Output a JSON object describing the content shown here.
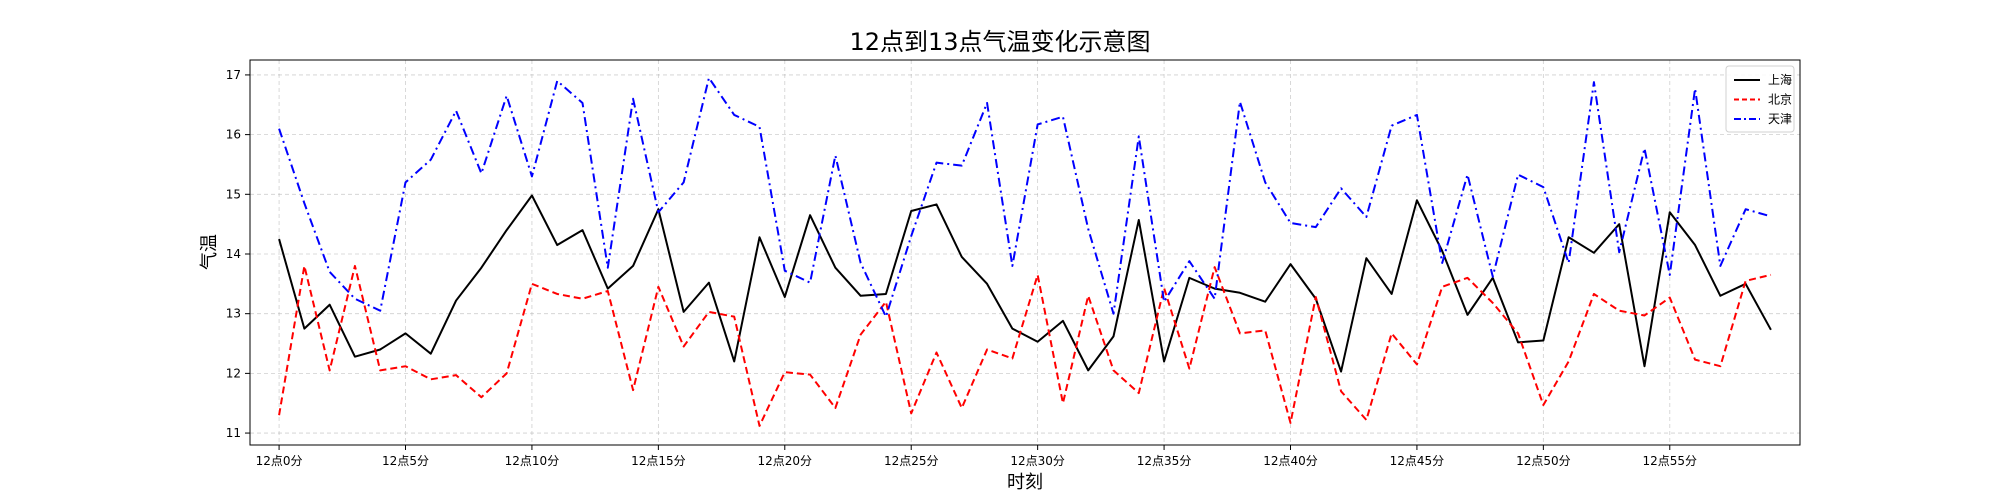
{
  "chart_data": {
    "type": "line",
    "title": "12点到13点气温变化示意图",
    "xlabel": "时刻",
    "ylabel": "气温",
    "ylim": [
      10.8,
      17.25
    ],
    "xlim": [
      -1.15,
      60.15
    ],
    "yticks": [
      11,
      12,
      13,
      14,
      15,
      16,
      17
    ],
    "xtick_positions": [
      0,
      5,
      10,
      15,
      20,
      25,
      30,
      35,
      40,
      45,
      50,
      55
    ],
    "xtick_labels": [
      "12点0分",
      "12点5分",
      "12点10分",
      "12点15分",
      "12点20分",
      "12点25分",
      "12点30分",
      "12点35分",
      "12点40分",
      "12点45分",
      "12点50分",
      "12点55分"
    ],
    "grid": true,
    "legend_position": "top-right",
    "x": [
      0,
      1,
      2,
      3,
      4,
      5,
      6,
      7,
      8,
      9,
      10,
      11,
      12,
      13,
      14,
      15,
      16,
      17,
      18,
      19,
      20,
      21,
      22,
      23,
      24,
      25,
      26,
      27,
      28,
      29,
      30,
      31,
      32,
      33,
      34,
      35,
      36,
      37,
      38,
      39,
      40,
      41,
      42,
      43,
      44,
      45,
      46,
      47,
      48,
      49,
      50,
      51,
      52,
      53,
      54,
      55,
      56,
      57,
      58,
      59
    ],
    "series": [
      {
        "name": "上海",
        "color": "#000000",
        "dash": "solid",
        "values": [
          14.25,
          12.75,
          13.15,
          12.28,
          12.4,
          12.67,
          12.33,
          13.22,
          13.77,
          14.4,
          14.98,
          14.15,
          14.4,
          13.42,
          13.8,
          14.75,
          13.03,
          13.52,
          12.2,
          14.28,
          13.28,
          14.65,
          13.77,
          13.3,
          13.33,
          14.72,
          14.83,
          13.95,
          13.5,
          12.75,
          12.53,
          12.88,
          12.05,
          12.62,
          14.57,
          12.2,
          13.6,
          13.42,
          13.35,
          13.2,
          13.83,
          13.25,
          12.03,
          13.93,
          13.33,
          14.9,
          14.05,
          12.98,
          13.6,
          12.52,
          12.55,
          14.28,
          14.02,
          14.5,
          12.12,
          14.7,
          14.15,
          13.3,
          13.5,
          12.73
        ]
      },
      {
        "name": "北京",
        "color": "#ff0000",
        "dash": "dashed",
        "values": [
          11.3,
          13.8,
          12.05,
          13.8,
          12.05,
          12.12,
          11.9,
          11.97,
          11.6,
          12.0,
          13.5,
          13.33,
          13.25,
          13.38,
          11.72,
          13.45,
          12.45,
          13.03,
          12.95,
          11.12,
          12.02,
          11.98,
          11.42,
          12.65,
          13.2,
          11.33,
          12.35,
          11.42,
          12.4,
          12.25,
          13.65,
          11.5,
          13.3,
          12.05,
          11.67,
          13.43,
          12.08,
          13.78,
          12.67,
          12.72,
          11.17,
          13.28,
          11.7,
          11.22,
          12.67,
          12.15,
          13.45,
          13.6,
          13.18,
          12.67,
          11.47,
          12.2,
          13.33,
          13.05,
          12.97,
          13.27,
          12.23,
          12.12,
          13.55,
          13.65
        ]
      },
      {
        "name": "天津",
        "color": "#0000ff",
        "dash": "dashdot",
        "values": [
          16.1,
          14.85,
          13.7,
          13.25,
          13.05,
          15.2,
          15.58,
          16.4,
          15.35,
          16.65,
          15.3,
          16.9,
          16.53,
          13.77,
          16.6,
          14.7,
          15.2,
          16.95,
          16.33,
          16.13,
          13.72,
          13.52,
          15.65,
          13.85,
          12.95,
          14.3,
          15.53,
          15.48,
          16.53,
          13.8,
          16.17,
          16.3,
          14.42,
          13.0,
          15.97,
          13.2,
          13.88,
          13.25,
          16.55,
          15.2,
          14.52,
          14.45,
          15.1,
          14.62,
          16.15,
          16.33,
          13.85,
          15.33,
          13.62,
          15.33,
          15.12,
          13.85,
          16.88,
          14.03,
          15.77,
          13.65,
          16.77,
          13.8,
          14.75,
          14.63
        ]
      }
    ]
  }
}
